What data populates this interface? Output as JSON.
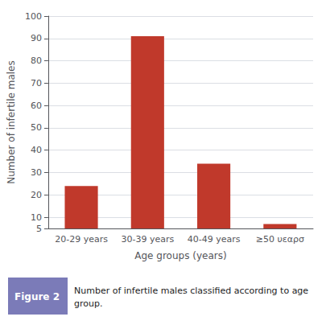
{
  "chart_data": {
    "type": "bar",
    "categories": [
      "20-29 years",
      "30-39 years",
      "40-49 years",
      "≥50 υεαρσ"
    ],
    "values": [
      24,
      91,
      34,
      7
    ],
    "color": "#C0392B",
    "xlabel": "Age groups (years)",
    "ylabel": "Number of infertile males",
    "ylim": [
      5,
      100
    ],
    "yticks": [
      5,
      10,
      20,
      30,
      40,
      50,
      60,
      70,
      80,
      90,
      100
    ],
    "grid": true,
    "annotations": [
      "Figure 2",
      "Number of infertile males classified according to age\ngroup."
    ]
  }
}
